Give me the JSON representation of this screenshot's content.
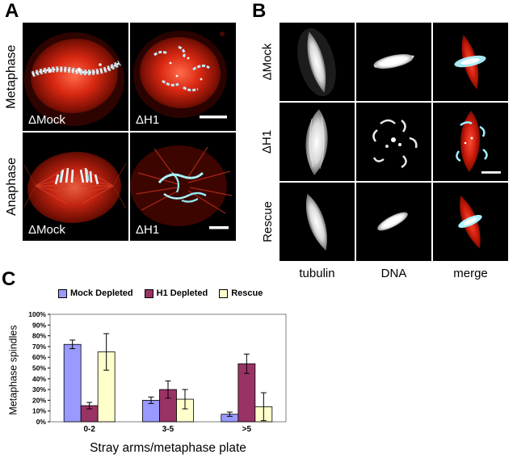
{
  "panel_a": {
    "label": "A",
    "row_labels": [
      "Metaphase",
      "Anaphase"
    ],
    "image_labels": [
      "ΔMock",
      "ΔH1",
      "ΔMock",
      "ΔH1"
    ]
  },
  "panel_b": {
    "label": "B",
    "row_labels": [
      "ΔMock",
      "ΔH1",
      "Rescue"
    ],
    "column_labels": [
      "tubulin",
      "DNA",
      "merge"
    ]
  },
  "panel_c": {
    "label": "C"
  },
  "chart_data": {
    "type": "bar",
    "title": "",
    "categories": [
      "0-2",
      "3-5",
      ">5"
    ],
    "series": [
      {
        "name": "Mock Depleted",
        "color": "#9999FF",
        "values": [
          72,
          20,
          7
        ],
        "errors": [
          4,
          3,
          2
        ]
      },
      {
        "name": "H1 Depleted",
        "color": "#993366",
        "values": [
          15,
          30,
          54
        ],
        "errors": [
          3,
          8,
          9
        ]
      },
      {
        "name": "Rescue",
        "color": "#FFFFCC",
        "values": [
          65,
          21,
          14
        ],
        "errors": [
          17,
          9,
          13
        ]
      }
    ],
    "ylabel": "Metaphase spindles",
    "xlabel": "Stray arms/metaphase plate",
    "ylim": [
      0,
      100
    ],
    "ytick_step": 10,
    "ytick_labels": [
      "0%",
      "10%",
      "20%",
      "30%",
      "40%",
      "50%",
      "60%",
      "70%",
      "80%",
      "90%",
      "100%"
    ],
    "legend_position": "top",
    "grid": false
  }
}
